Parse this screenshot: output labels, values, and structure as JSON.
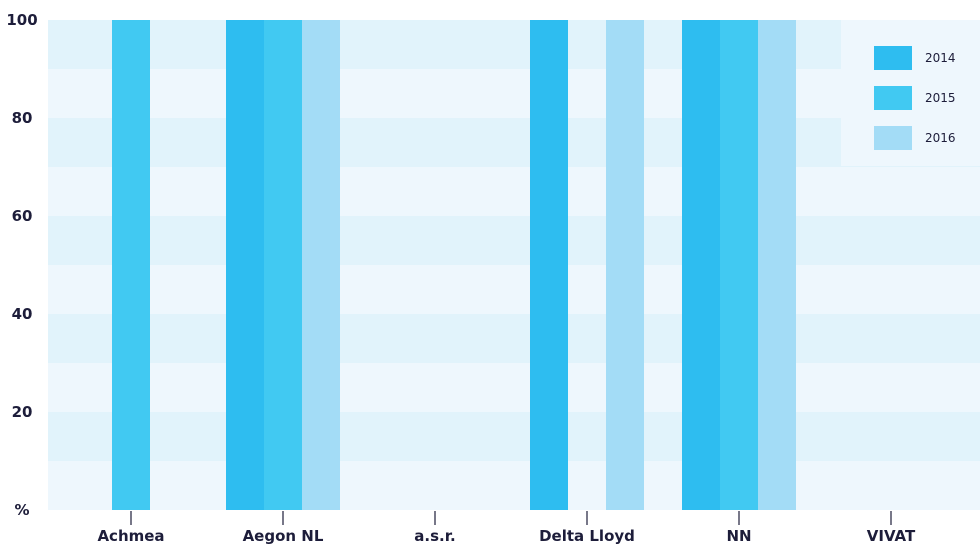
{
  "chart_data": {
    "type": "bar",
    "categories": [
      "Achmea",
      "Aegon NL",
      "a.s.r.",
      "Delta Lloyd",
      "NN",
      "VIVAT"
    ],
    "series": [
      {
        "name": "2014",
        "values": [
          0,
          100,
          0,
          100,
          100,
          0
        ],
        "color": "#2ebdf0"
      },
      {
        "name": "2015",
        "values": [
          100,
          100,
          0,
          0,
          100,
          0
        ],
        "color": "#41c9f2"
      },
      {
        "name": "2016",
        "values": [
          0,
          100,
          0,
          100,
          100,
          0
        ],
        "color": "#a3dcf6"
      }
    ],
    "ylim": [
      0,
      100
    ],
    "yticks": [
      {
        "value": 0,
        "label": "%"
      },
      {
        "value": 20,
        "label": "20"
      },
      {
        "value": 40,
        "label": "40"
      },
      {
        "value": 60,
        "label": "60"
      },
      {
        "value": 80,
        "label": "80"
      },
      {
        "value": 100,
        "label": "100"
      }
    ],
    "grid": true,
    "legend": "top-right",
    "band_colors": [
      "#eef7fd",
      "#e1f3fb"
    ]
  }
}
